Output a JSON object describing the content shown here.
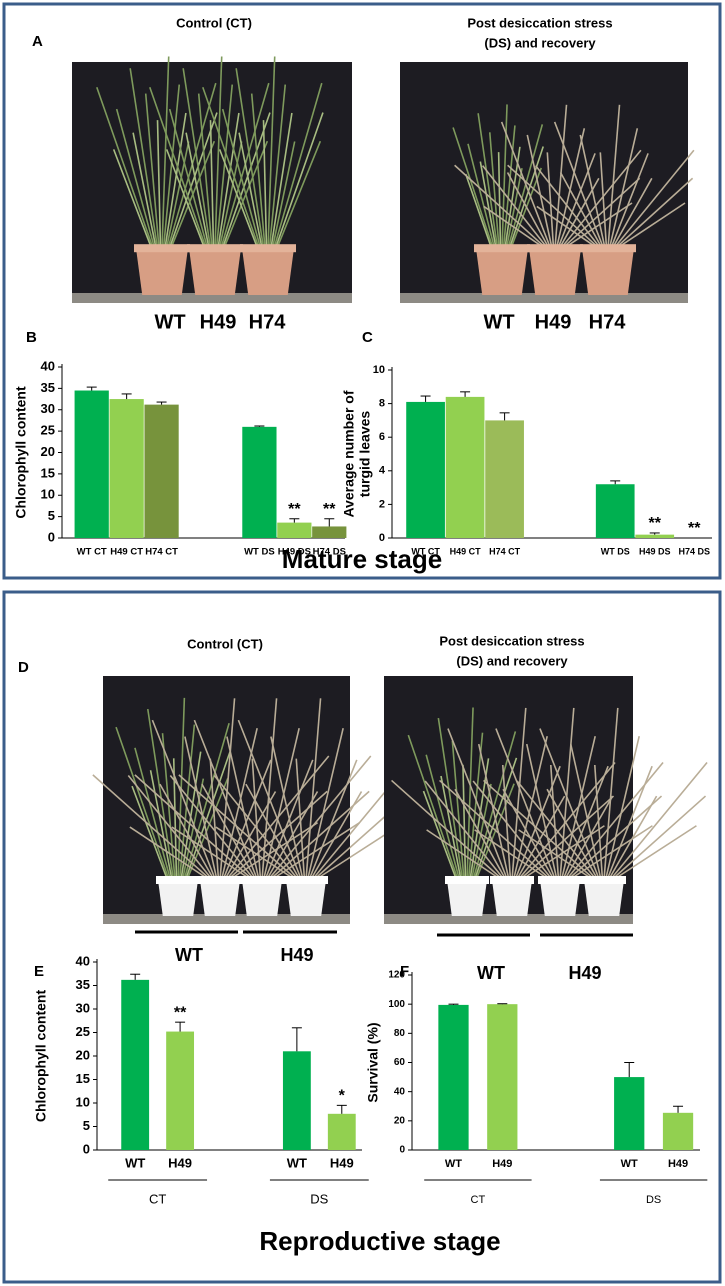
{
  "mature": {
    "letter": "A",
    "left_title": "Control (CT)",
    "right_title": [
      "Post desiccation stress",
      "(DS) and recovery"
    ],
    "left_labels": [
      "WT",
      "H49",
      "H74"
    ],
    "right_labels": [
      "WT",
      "H49",
      "H74"
    ],
    "heading": "Mature stage"
  },
  "reproductive": {
    "letter": "D",
    "left_title": "Control (CT)",
    "right_title": [
      "Post desiccation stress",
      "(DS) and recovery"
    ],
    "left_labels": [
      "WT",
      "H49"
    ],
    "right_labels": [
      "WT",
      "H49"
    ],
    "heading": "Reproductive stage"
  },
  "chart_data": [
    {
      "type": "bar",
      "panel": "B",
      "y_label": [
        "Chlorophyll content"
      ],
      "categories": [
        "WT CT",
        "H49 CT",
        "H74 CT",
        "WT DS",
        "H49 DS",
        "H74 DS"
      ],
      "values": [
        34.5,
        32.5,
        31.2,
        26.0,
        3.6,
        2.7
      ],
      "errors": [
        0.8,
        1.2,
        0.6,
        0.2,
        0.9,
        1.8
      ],
      "colors": [
        "#00b050",
        "#92d050",
        "#77933c",
        "#00b050",
        "#92d050",
        "#77933c"
      ],
      "annotations": [
        null,
        null,
        null,
        null,
        "**",
        "**"
      ],
      "ylim": [
        0,
        40
      ],
      "yticks": [
        0,
        5,
        10,
        15,
        20,
        25,
        30,
        35,
        40
      ]
    },
    {
      "type": "bar",
      "panel": "C",
      "y_label": [
        "Average number of",
        "turgid leaves"
      ],
      "categories": [
        "WT CT",
        "H49 CT",
        "H74 CT",
        "WT DS",
        "H49 DS",
        "H74 DS"
      ],
      "values": [
        8.1,
        8.4,
        7.0,
        3.2,
        0.2,
        0
      ],
      "errors": [
        0.35,
        0.3,
        0.45,
        0.2,
        0.1,
        0
      ],
      "colors": [
        "#00b050",
        "#92d050",
        "#9bbb59",
        "#00b050",
        "#92d050",
        "#9bbb59"
      ],
      "annotations": [
        null,
        null,
        null,
        null,
        "**",
        "**"
      ],
      "ylim": [
        0,
        10
      ],
      "yticks": [
        0,
        2,
        4,
        6,
        8,
        10
      ]
    },
    {
      "type": "bar",
      "panel": "E",
      "y_label": [
        "Chlorophyll content"
      ],
      "categories": [
        "WT",
        "H49",
        "WT",
        "H49"
      ],
      "groups": [
        "CT",
        "DS"
      ],
      "values": [
        36.2,
        25.2,
        21.0,
        7.7
      ],
      "errors": [
        1.2,
        2.0,
        5.0,
        1.8
      ],
      "colors": [
        "#00b050",
        "#92d050",
        "#00b050",
        "#92d050"
      ],
      "annotations": [
        null,
        "**",
        null,
        "*"
      ],
      "ylim": [
        0,
        40
      ],
      "yticks": [
        0,
        5,
        10,
        15,
        20,
        25,
        30,
        35,
        40
      ]
    },
    {
      "type": "bar",
      "panel": "F",
      "y_label": [
        "Survival (%)"
      ],
      "categories": [
        "WT",
        "H49",
        "WT",
        "H49"
      ],
      "groups": [
        "CT",
        "DS"
      ],
      "values": [
        99.5,
        100,
        50,
        25.5
      ],
      "errors": [
        0.5,
        0.3,
        10,
        4.5
      ],
      "colors": [
        "#00b050",
        "#92d050",
        "#00b050",
        "#92d050"
      ],
      "ylim": [
        0,
        120
      ],
      "yticks": [
        0,
        20,
        40,
        60,
        80,
        100,
        120
      ]
    }
  ]
}
